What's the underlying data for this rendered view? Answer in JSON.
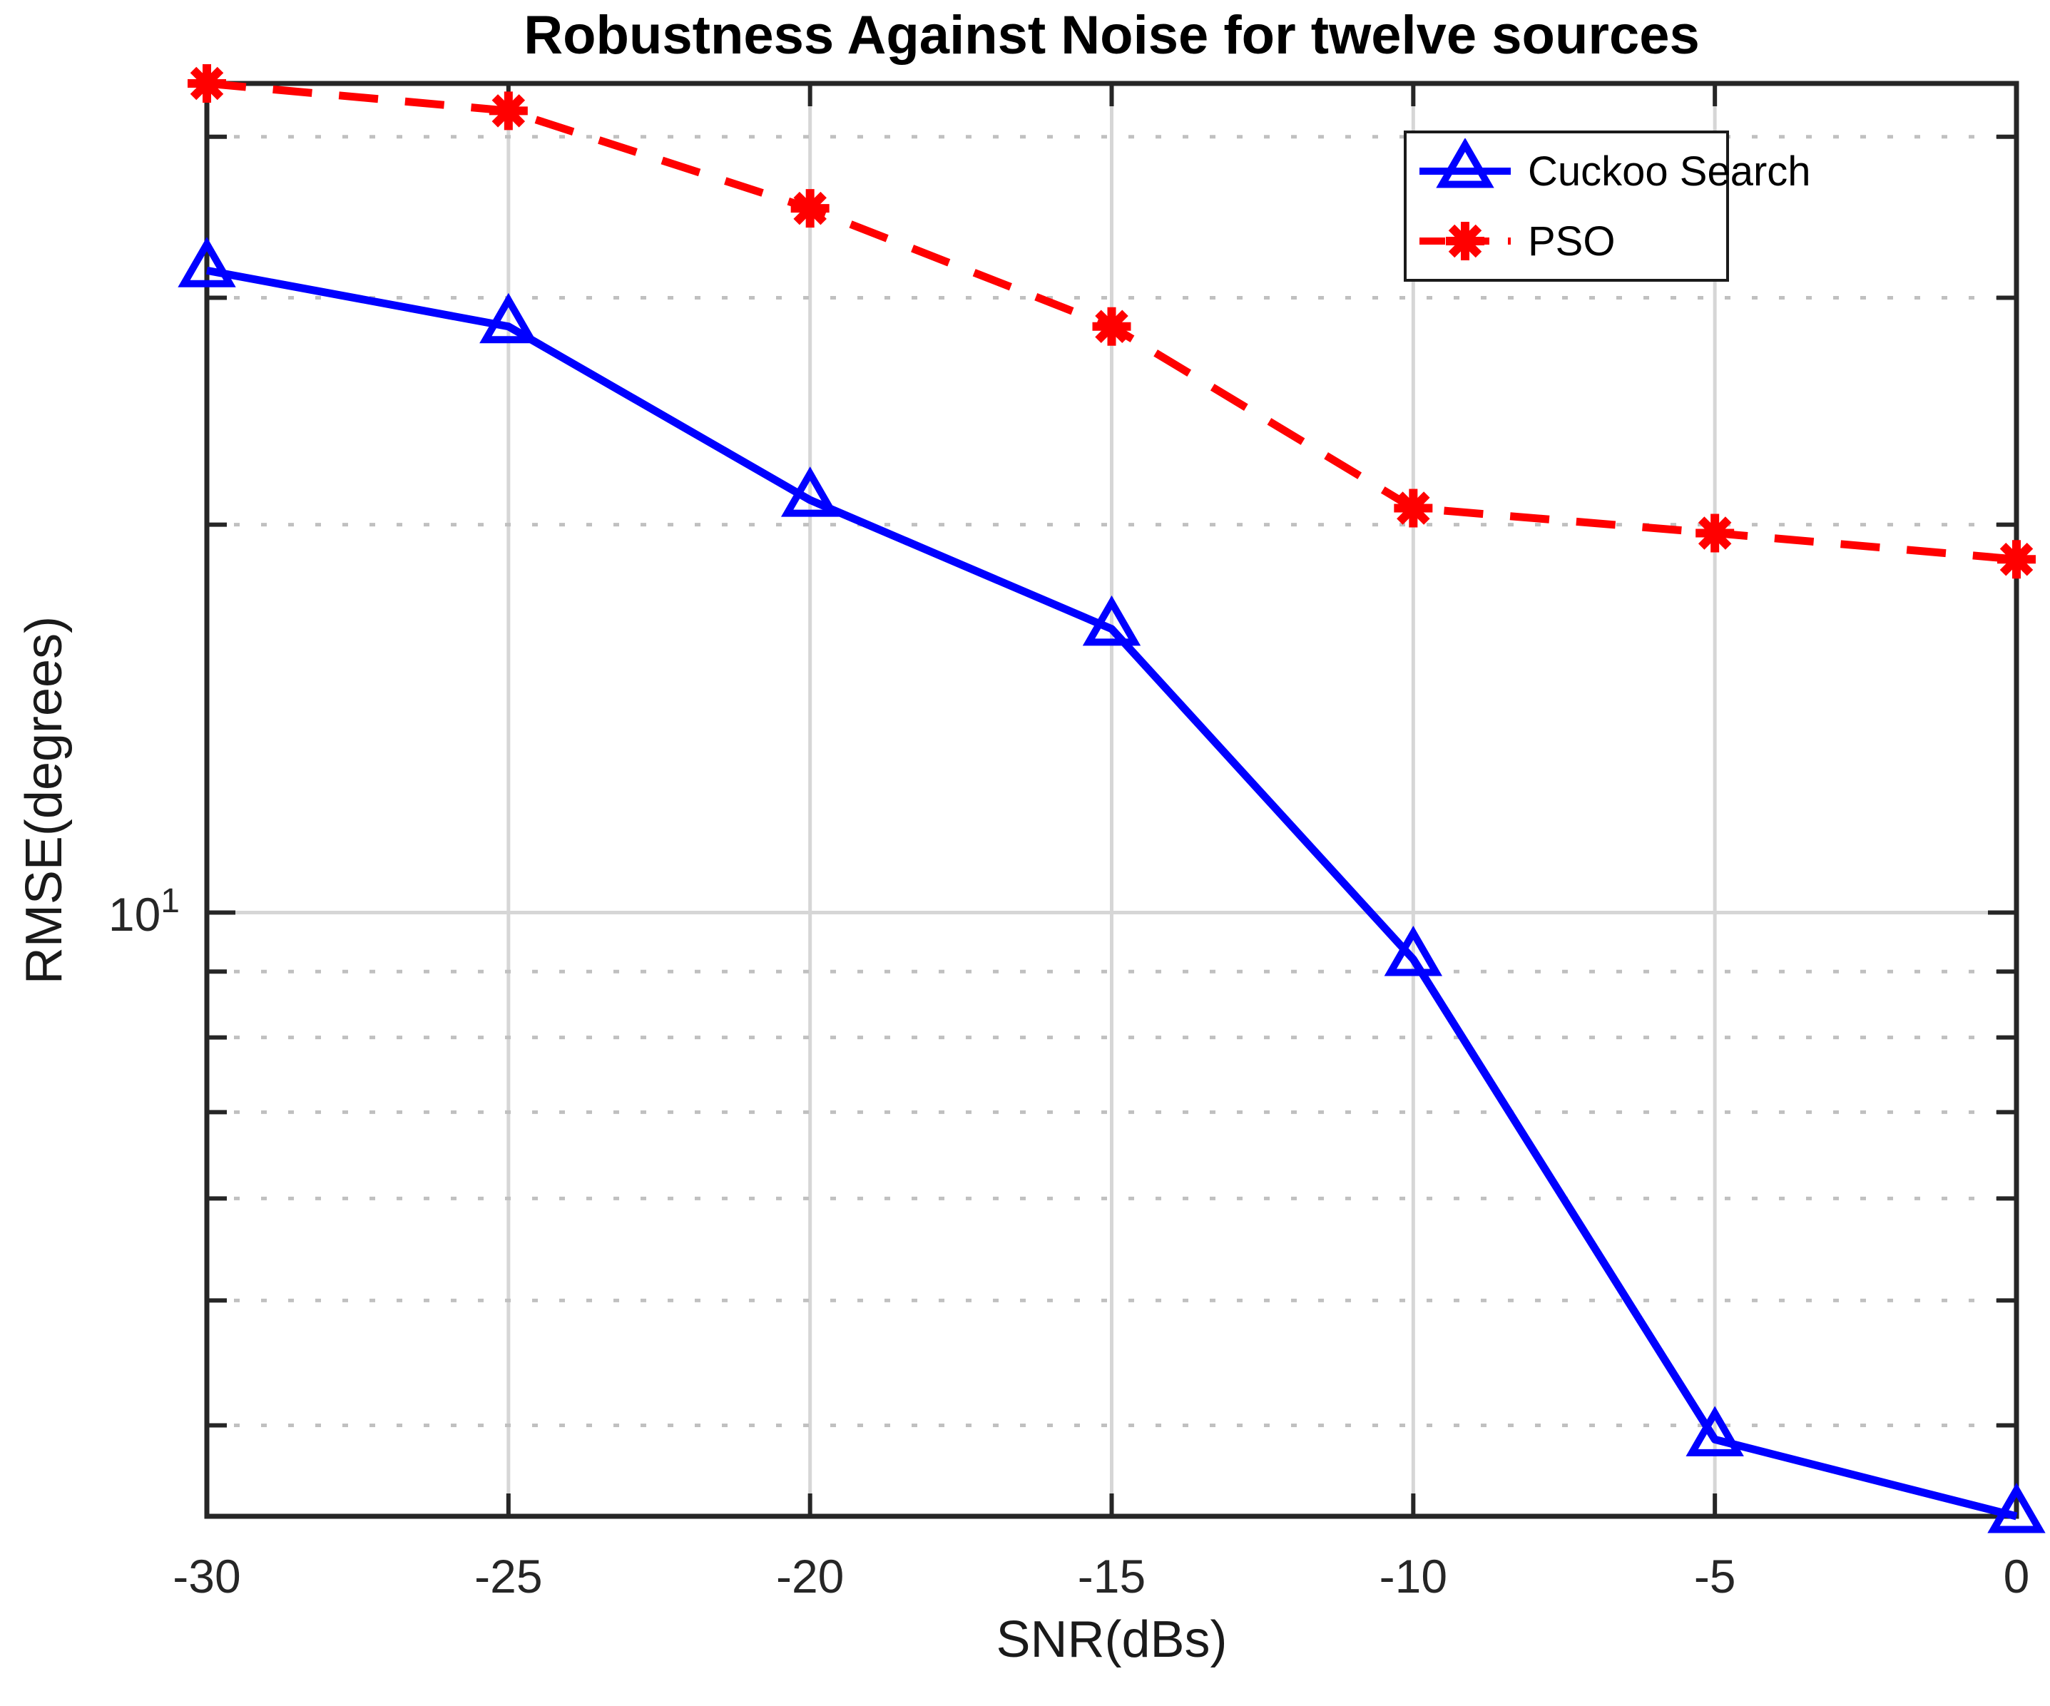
{
  "figure": {
    "title": "Robustness Against Noise for twelve sources",
    "xlabel": "SNR(dBs)",
    "ylabel": "RMSE(degrees)"
  },
  "legend": {
    "entries": [
      {
        "label": "Cuckoo Search",
        "color": "#0000ff",
        "line": "solid",
        "marker": "triangle"
      },
      {
        "label": "PSO",
        "color": "#ff0000",
        "line": "dashed",
        "marker": "asterisk"
      }
    ],
    "position": "upper-right-inside"
  },
  "chart_data": {
    "type": "line",
    "x": [
      -30,
      -25,
      -20,
      -15,
      -10,
      -5,
      0
    ],
    "series": [
      {
        "name": "Cuckoo Search",
        "color": "#0000ff",
        "linestyle": "solid",
        "marker": "triangle",
        "values": [
          31.5,
          28.5,
          20.9,
          16.6,
          9.2,
          3.9,
          3.4
        ]
      },
      {
        "name": "PSO",
        "color": "#ff0000",
        "linestyle": "dashed",
        "marker": "asterisk",
        "values": [
          44.0,
          41.9,
          35.2,
          28.5,
          20.6,
          19.7,
          18.8
        ]
      }
    ],
    "title": "Robustness Against Noise for twelve sources",
    "xlabel": "SNR(dBs)",
    "ylabel": "RMSE(degrees)",
    "xlim": [
      -30,
      0
    ],
    "ylim": [
      3.4,
      44.0
    ],
    "yscale": "log",
    "xticks": [
      -30,
      -25,
      -20,
      -15,
      -10,
      -5,
      0
    ],
    "xtick_labels": [
      "-30",
      "-25",
      "-20",
      "-15",
      "-10",
      "-5",
      "0"
    ],
    "ytick": {
      "value": 10,
      "base": "10",
      "exp": "1"
    },
    "y_minor_grid": [
      4,
      5,
      6,
      7,
      8,
      9,
      20,
      30,
      40
    ],
    "grid": "on",
    "colors": {
      "major_grid": "#d6d6d6",
      "minor_grid": "#c0c0c0",
      "axis_box": "#262626",
      "blue": "#0000ff",
      "red": "#ff0000"
    }
  }
}
